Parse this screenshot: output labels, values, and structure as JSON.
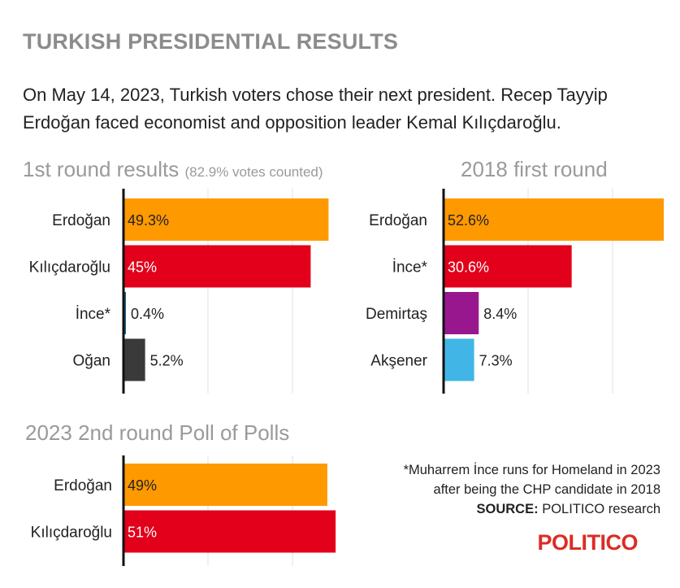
{
  "header": {
    "title": "TURKISH PRESIDENTIAL RESULTS",
    "subtitle": "On May 14, 2023, Turkish voters chose their next president. Recep Tayyip Erdoğan faced economist and opposition leader Kemal Kılıçdaroğlu."
  },
  "chart_data": [
    {
      "type": "bar",
      "orientation": "horizontal",
      "title": "1st round results",
      "title_note": "(82.9% votes counted)",
      "categories": [
        "Erdoğan",
        "Kılıçdaroğlu",
        "İnce*",
        "Oğan"
      ],
      "values": [
        49.3,
        45,
        0.4,
        5.2
      ],
      "labels": [
        "49.3%",
        "45%",
        "0.4%",
        "5.2%"
      ],
      "colors": [
        "#ff9900",
        "#e2001a",
        "#1f5f8b",
        "#3a3a3a"
      ],
      "xlim": [
        0,
        50
      ],
      "grid": true
    },
    {
      "type": "bar",
      "orientation": "horizontal",
      "title": "2018 first round",
      "categories": [
        "Erdoğan",
        "İnce*",
        "Demirtaş",
        "Akşener"
      ],
      "values": [
        52.6,
        30.6,
        8.4,
        7.3
      ],
      "labels": [
        "52.6%",
        "30.6%",
        "8.4%",
        "7.3%"
      ],
      "colors": [
        "#ff9900",
        "#e2001a",
        "#98178e",
        "#41b6e6"
      ],
      "xlim": [
        0,
        52.6
      ],
      "grid": true
    },
    {
      "type": "bar",
      "orientation": "horizontal",
      "title": "2023 2nd round Poll of Polls",
      "categories": [
        "Erdoğan",
        "Kılıçdaroğlu"
      ],
      "values": [
        49,
        51
      ],
      "labels": [
        "49%",
        "51%"
      ],
      "colors": [
        "#ff9900",
        "#e2001a"
      ],
      "xlim": [
        0,
        50
      ],
      "grid": true
    }
  ],
  "footnote": {
    "line1": "*Muharrem İnce runs for Homeland in 2023",
    "line2": "after being the CHP candidate in 2018",
    "source_label": "SOURCE:",
    "source_text": "POLITICO research"
  },
  "logo": "POLITICO"
}
